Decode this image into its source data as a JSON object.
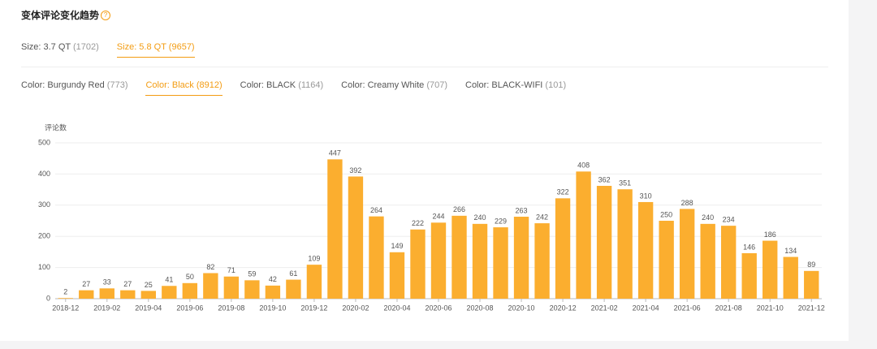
{
  "header": {
    "title": "变体评论变化趋势"
  },
  "size_tabs": [
    {
      "label": "Size: 3.7 QT",
      "count": "(1702)",
      "active": false
    },
    {
      "label": "Size: 5.8 QT",
      "count": "(9657)",
      "active": true
    }
  ],
  "color_tabs": [
    {
      "label": "Color: Burgundy Red",
      "count": "(773)",
      "active": false
    },
    {
      "label": "Color: Black",
      "count": "(8912)",
      "active": true
    },
    {
      "label": "Color: BLACK",
      "count": "(1164)",
      "active": false
    },
    {
      "label": "Color: Creamy White",
      "count": "(707)",
      "active": false
    },
    {
      "label": "Color: BLACK-WIFI",
      "count": "(101)",
      "active": false
    }
  ],
  "chart_data": {
    "type": "bar",
    "y_label": "评论数",
    "categories": [
      "2018-12",
      null,
      "2019-02",
      null,
      "2019-04",
      null,
      "2019-06",
      null,
      "2019-08",
      null,
      "2019-10",
      null,
      "2019-12",
      null,
      "2020-02",
      null,
      "2020-04",
      null,
      "2020-06",
      null,
      "2020-08",
      null,
      "2020-10",
      null,
      "2020-12",
      null,
      "2021-02",
      null,
      "2021-04",
      null,
      "2021-06",
      null,
      "2021-08",
      null,
      "2021-10",
      null,
      "2021-12"
    ],
    "values": [
      2,
      27,
      33,
      27,
      25,
      41,
      50,
      82,
      71,
      59,
      42,
      61,
      109,
      447,
      392,
      264,
      149,
      222,
      244,
      266,
      240,
      229,
      263,
      242,
      322,
      408,
      362,
      351,
      310,
      250,
      288,
      240,
      234,
      146,
      186,
      134,
      89
    ],
    "color": "#fbae2f",
    "ylim": [
      0,
      500
    ],
    "yticks": [
      0,
      100,
      200,
      300,
      400,
      500
    ],
    "grid": true
  }
}
